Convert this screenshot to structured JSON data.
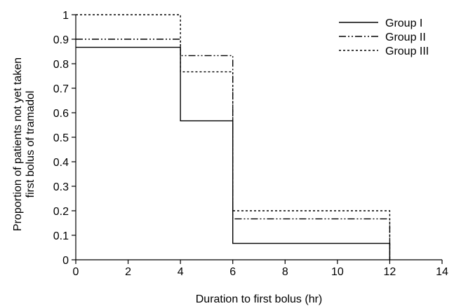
{
  "chart_data": {
    "type": "line",
    "title": "",
    "xlabel": "Duration to first bolus (hr)",
    "ylabel_lines": [
      "Proportion of patients not yet taken",
      "first bolus of tramadol"
    ],
    "xlim": [
      0,
      14
    ],
    "ylim": [
      0,
      1
    ],
    "x_ticks": [
      "0",
      "2",
      "4",
      "6",
      "8",
      "10",
      "12",
      "14"
    ],
    "y_ticks": [
      "0",
      "0.1",
      "0.2",
      "0.3",
      "0.4",
      "0.5",
      "0.6",
      "0.7",
      "0.8",
      "0.9",
      "1"
    ],
    "grid": false,
    "legend_position": "top-right",
    "step": true,
    "series": [
      {
        "name": "Group I",
        "line_style": "solid",
        "x": [
          0,
          4,
          6,
          12
        ],
        "y": [
          0.867,
          0.567,
          0.067,
          0
        ]
      },
      {
        "name": "Group II",
        "line_style": "dash-dot-dot",
        "x": [
          0,
          4,
          6,
          12
        ],
        "y": [
          0.9,
          0.833,
          0.167,
          0
        ]
      },
      {
        "name": "Group III",
        "line_style": "dotted",
        "x": [
          0,
          4,
          6,
          12
        ],
        "y": [
          1.0,
          0.767,
          0.2,
          0
        ]
      }
    ],
    "colors": {
      "line": "#000000",
      "axis": "#000000"
    }
  }
}
